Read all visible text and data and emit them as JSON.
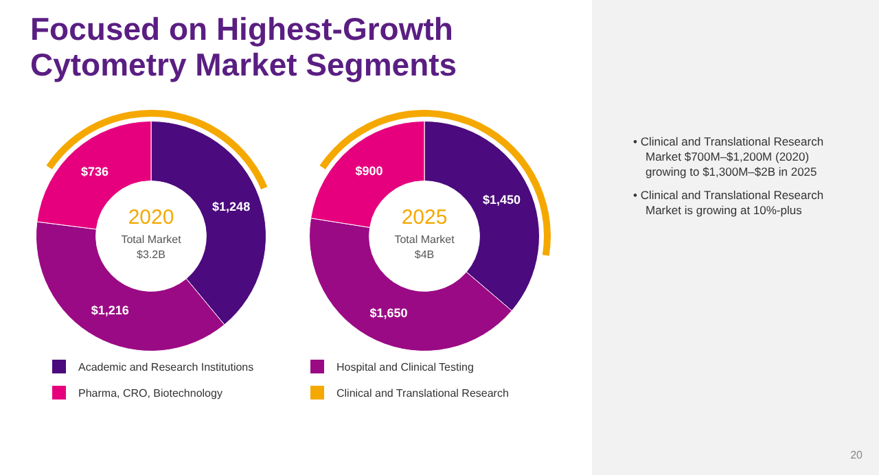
{
  "chart_data": [
    {
      "type": "donut",
      "title": "Focused on Highest-Growth Cytometry Market Segments",
      "categories": [
        "Academic and Research Institutions",
        "Hospital and Clinical Testing",
        "Pharma, CRO, Biotechnology"
      ],
      "legend": "bottom",
      "series": [
        {
          "values": [
            1248,
            1216,
            736
          ],
          "colors": [
            "#4b0a7d",
            "#9b0a85",
            "#e6007e"
          ],
          "value_labels": [
            "$1,248",
            "$1,216",
            "$736"
          ]
        }
      ],
      "annotations": [
        "2020",
        "Total Market",
        "$3.2B",
        "Clinical and Translational Research"
      ]
    },
    {
      "type": "donut",
      "categories": [
        null,
        null,
        null
      ],
      "series": [
        {
          "values": [
            1450,
            1650,
            900
          ],
          "colors": [
            "#4b0a7d",
            "#9b0a85",
            "#e6007e"
          ],
          "value_labels": [
            "$1,450",
            "$1,650",
            "$900"
          ]
        }
      ],
      "annotations": [
        "2025",
        "Total Market",
        "$4B"
      ]
    },
    {
      "type": "other",
      "annotations": [
        "• Clinical and Translational Research Market $700M–$1,200M (2020) growing to $1,300M–$2B in 2025",
        "• Clinical and Translational Research Market is growing at 10%-plus",
        "20"
      ]
    }
  ]
}
